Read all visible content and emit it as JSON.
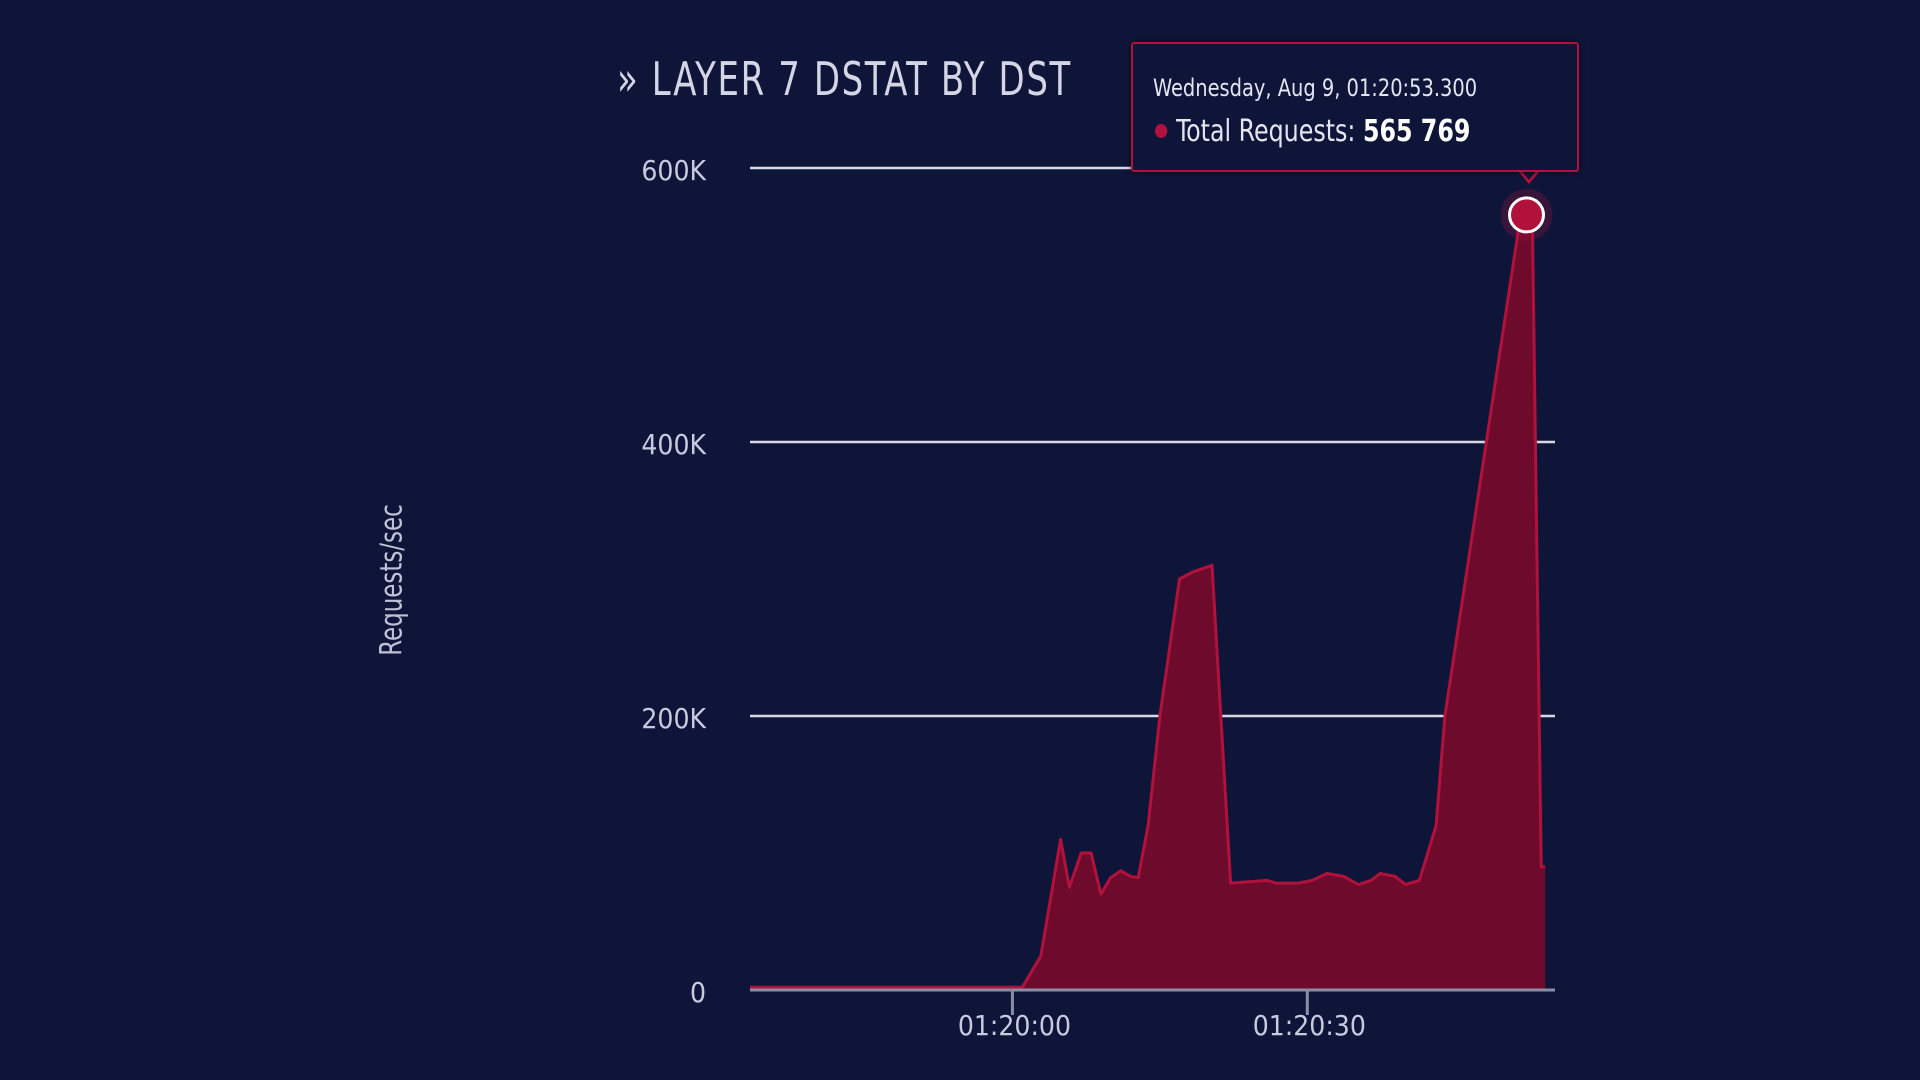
{
  "chart_data": {
    "type": "area",
    "title": "» LAYER 7 DSTAT BY DST",
    "ylabel": "Requests/sec",
    "xlabel": "",
    "ylim": [
      0,
      600000
    ],
    "y_ticks": [
      0,
      200000,
      400000,
      600000
    ],
    "y_tick_labels": [
      "0",
      "200K",
      "400K",
      "600K"
    ],
    "x_ticks": [
      1,
      31
    ],
    "x_tick_labels": [
      "01:20:00",
      "01:20:30"
    ],
    "xlim": [
      -25.7,
      56.2
    ],
    "grid": true,
    "legend": "none",
    "series": [
      {
        "color": "#b0123c",
        "fill": "#6e0a2c",
        "x": [
          -25.7,
          -20,
          -15,
          -10,
          -5,
          0,
          2,
          3.9,
          5.9,
          6.8,
          8,
          9,
          10,
          11,
          12,
          13,
          13.8,
          14.8,
          16,
          18,
          19.3,
          21.3,
          23.2,
          26.9,
          27.8,
          28.9,
          30.1,
          31.5,
          33,
          34.7,
          36.2,
          37.5,
          38.4,
          39.9,
          41,
          42.4,
          44.1,
          45,
          52.5,
          53.9,
          54.8,
          55.2
        ],
        "y": [
          2000,
          2000,
          2000,
          2000,
          2000,
          2000,
          2000,
          25000,
          110000,
          75000,
          100000,
          100000,
          70000,
          82000,
          87000,
          83000,
          82000,
          120000,
          200000,
          300000,
          305000,
          310000,
          78000,
          80000,
          78000,
          78000,
          78000,
          80000,
          85000,
          83000,
          77000,
          80000,
          85000,
          83000,
          77000,
          80000,
          120000,
          200000,
          555769,
          560000,
          90000,
          90000
        ]
      }
    ],
    "highlight": {
      "x": 53.3,
      "value": 565769,
      "label": "Total Requests",
      "date": "Wednesday, Aug 9, 01:20:53.300",
      "value_text": "565 769"
    }
  }
}
